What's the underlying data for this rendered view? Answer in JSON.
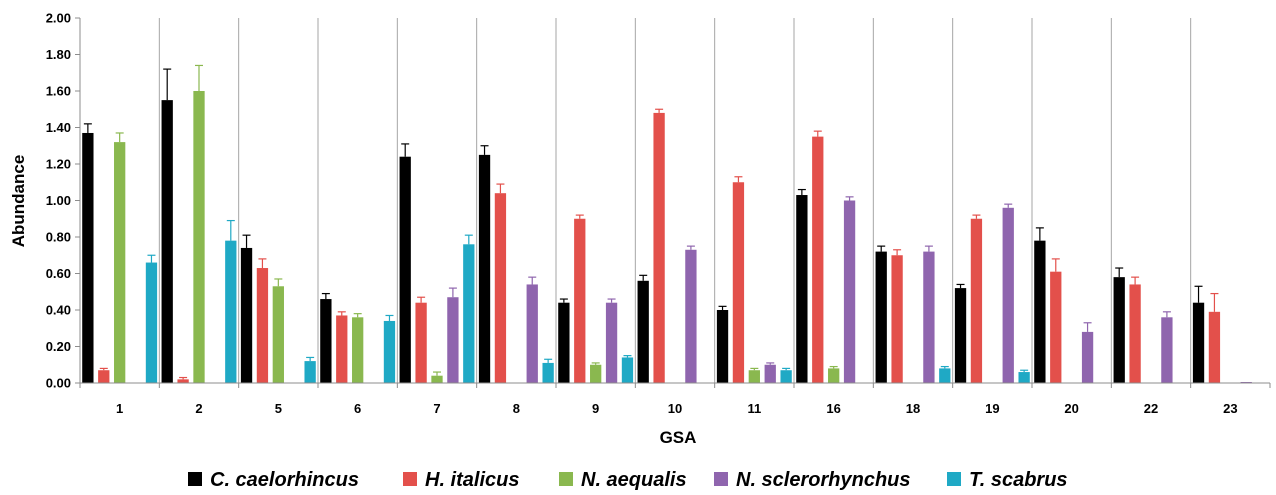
{
  "chart_data": {
    "type": "bar",
    "xlabel": "GSA",
    "ylabel": "Abundance",
    "ylim": [
      0,
      2
    ],
    "yticks": [
      "0.00",
      "0.20",
      "0.40",
      "0.60",
      "0.80",
      "1.00",
      "1.20",
      "1.40",
      "1.60",
      "1.80",
      "2.00"
    ],
    "categories": [
      "1",
      "2",
      "5",
      "6",
      "7",
      "8",
      "9",
      "10",
      "11",
      "16",
      "18",
      "19",
      "20",
      "22",
      "23"
    ],
    "legend_position": "bottom",
    "grid": "vertical separators between groups",
    "series": [
      {
        "name": "C. caelorhincus",
        "color": "#000000",
        "values": [
          1.37,
          1.55,
          0.74,
          0.46,
          1.24,
          1.25,
          0.44,
          0.56,
          0.4,
          1.03,
          0.72,
          0.52,
          0.78,
          0.58,
          0.44
        ],
        "errors": [
          0.05,
          0.17,
          0.07,
          0.03,
          0.07,
          0.05,
          0.02,
          0.03,
          0.02,
          0.03,
          0.03,
          0.02,
          0.07,
          0.05,
          0.09
        ]
      },
      {
        "name": "H. italicus",
        "color": "#e3504b",
        "values": [
          0.07,
          0.02,
          0.63,
          0.37,
          0.44,
          1.04,
          0.9,
          1.48,
          1.1,
          1.35,
          0.7,
          0.9,
          0.61,
          0.54,
          0.39
        ],
        "errors": [
          0.01,
          0.01,
          0.05,
          0.02,
          0.03,
          0.05,
          0.02,
          0.02,
          0.03,
          0.03,
          0.03,
          0.02,
          0.07,
          0.04,
          0.1
        ]
      },
      {
        "name": "N. aequalis",
        "color": "#8ab84f",
        "values": [
          1.32,
          1.6,
          0.53,
          0.36,
          0.04,
          0,
          0.1,
          0,
          0.07,
          0.08,
          0,
          0,
          0,
          0,
          0
        ],
        "errors": [
          0.05,
          0.14,
          0.04,
          0.02,
          0.02,
          0,
          0.01,
          0,
          0.01,
          0.01,
          0,
          0,
          0,
          0,
          0
        ]
      },
      {
        "name": "N. sclerorhynchus",
        "color": "#8f65ae",
        "values": [
          0,
          0,
          0,
          0,
          0.47,
          0.54,
          0.44,
          0.73,
          0.1,
          1.0,
          0.72,
          0.96,
          0.28,
          0.36,
          0.005
        ],
        "errors": [
          0,
          0,
          0,
          0,
          0.05,
          0.04,
          0.02,
          0.02,
          0.01,
          0.02,
          0.03,
          0.02,
          0.05,
          0.03,
          0
        ]
      },
      {
        "name": "T. scabrus",
        "color": "#1fa9c5",
        "values": [
          0.66,
          0.78,
          0.12,
          0.34,
          0.76,
          0.11,
          0.14,
          0,
          0.07,
          0,
          0.08,
          0.06,
          0,
          0,
          0
        ],
        "errors": [
          0.04,
          0.11,
          0.02,
          0.03,
          0.05,
          0.02,
          0.01,
          0,
          0.01,
          0,
          0.01,
          0.01,
          0,
          0,
          0
        ]
      }
    ]
  }
}
